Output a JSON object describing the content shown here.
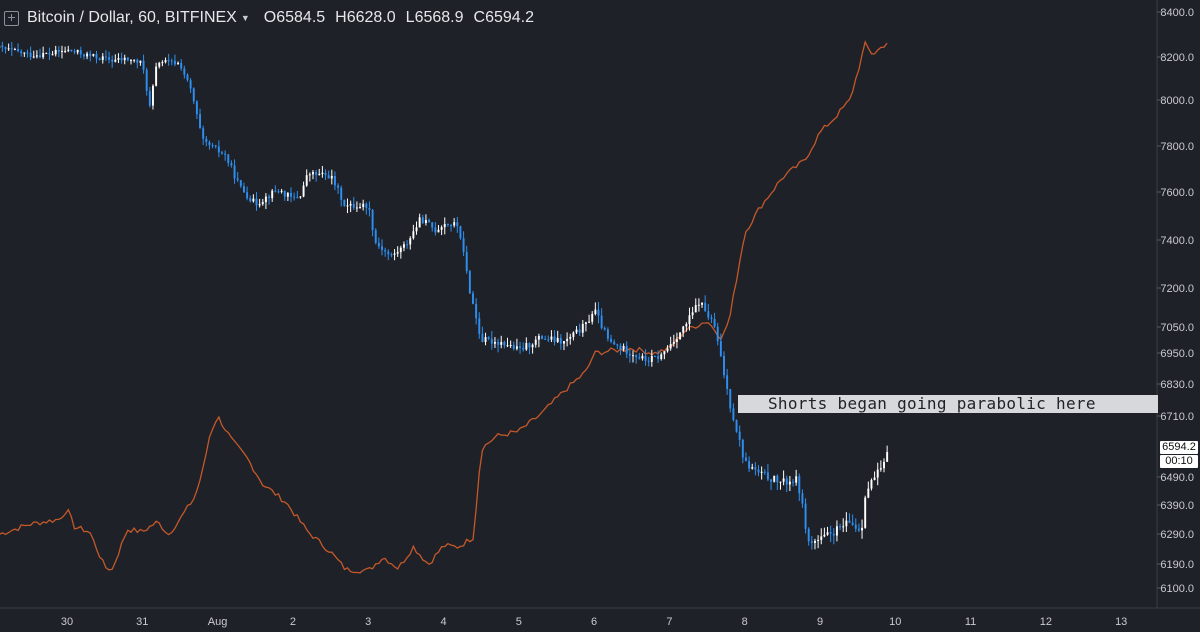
{
  "header": {
    "symbol": "Bitcoin / Dollar, 60, BITFINEX",
    "open": "O6584.5",
    "high": "H6628.0",
    "low": "L6568.9",
    "close": "C6594.2"
  },
  "annotation": "Shorts began going parabolic here",
  "last_price_label": "6594.2",
  "countdown_label": "00:10",
  "colors": {
    "background": "#1e2127",
    "up_candle": "#ffffff",
    "down_candle": "#2e8ff0",
    "overlay_line": "#c4582a",
    "axis_text": "#c9cbd0"
  },
  "chart_data": {
    "type": "candlestick",
    "ylim": [
      6050,
      8450
    ],
    "y_ticks": [
      6100.0,
      6190.0,
      6290.0,
      6390.0,
      6490.0,
      6594.2,
      6710.0,
      6830.0,
      6950.0,
      7050.0,
      7200.0,
      7400.0,
      7600.0,
      7800.0,
      8000.0,
      8200.0,
      8400.0
    ],
    "y_tick_labels": [
      "6100.0",
      "6190.0",
      "6290.0",
      "6390.0",
      "6490.0",
      "",
      "6710.0",
      "6830.0",
      "6950.0",
      "7050.0",
      "7200.0",
      "7400.0",
      "7600.0",
      "7800.0",
      "8000.0",
      "8200.0",
      "8400.0"
    ],
    "x_ticks": [
      {
        "label": "30",
        "day": 0
      },
      {
        "label": "31",
        "day": 1
      },
      {
        "label": "Aug",
        "day": 2
      },
      {
        "label": "2",
        "day": 3
      },
      {
        "label": "3",
        "day": 4
      },
      {
        "label": "4",
        "day": 5
      },
      {
        "label": "5",
        "day": 6
      },
      {
        "label": "6",
        "day": 7
      },
      {
        "label": "7",
        "day": 8
      },
      {
        "label": "8",
        "day": 9
      },
      {
        "label": "9",
        "day": 10
      },
      {
        "label": "10",
        "day": 11
      },
      {
        "label": "11",
        "day": 12
      },
      {
        "label": "12",
        "day": 13
      },
      {
        "label": "13",
        "day": 14
      }
    ],
    "price_path": [
      [
        -0.9,
        8240
      ],
      [
        -0.5,
        8210
      ],
      [
        -0.2,
        8215
      ],
      [
        0.0,
        8230
      ],
      [
        0.3,
        8205
      ],
      [
        0.6,
        8185
      ],
      [
        0.8,
        8190
      ],
      [
        1.0,
        8170
      ],
      [
        1.1,
        7970
      ],
      [
        1.2,
        8180
      ],
      [
        1.5,
        8170
      ],
      [
        1.65,
        8040
      ],
      [
        1.8,
        7820
      ],
      [
        2.1,
        7760
      ],
      [
        2.3,
        7620
      ],
      [
        2.5,
        7550
      ],
      [
        2.8,
        7610
      ],
      [
        3.0,
        7570
      ],
      [
        3.1,
        7590
      ],
      [
        3.2,
        7680
      ],
      [
        3.5,
        7670
      ],
      [
        3.7,
        7540
      ],
      [
        4.0,
        7545
      ],
      [
        4.1,
        7390
      ],
      [
        4.3,
        7330
      ],
      [
        4.5,
        7380
      ],
      [
        4.7,
        7490
      ],
      [
        4.9,
        7440
      ],
      [
        5.0,
        7470
      ],
      [
        5.2,
        7460
      ],
      [
        5.35,
        7190
      ],
      [
        5.5,
        7000
      ],
      [
        5.8,
        6990
      ],
      [
        6.0,
        6960
      ],
      [
        6.3,
        7010
      ],
      [
        6.6,
        6990
      ],
      [
        6.9,
        7060
      ],
      [
        7.0,
        7120
      ],
      [
        7.2,
        6990
      ],
      [
        7.5,
        6950
      ],
      [
        7.7,
        6920
      ],
      [
        7.9,
        6940
      ],
      [
        8.0,
        6980
      ],
      [
        8.2,
        7050
      ],
      [
        8.4,
        7150
      ],
      [
        8.6,
        7050
      ],
      [
        8.8,
        6760
      ],
      [
        9.0,
        6540
      ],
      [
        9.2,
        6500
      ],
      [
        9.5,
        6470
      ],
      [
        9.7,
        6480
      ],
      [
        9.85,
        6260
      ],
      [
        10.0,
        6270
      ],
      [
        10.2,
        6300
      ],
      [
        10.4,
        6330
      ],
      [
        10.55,
        6300
      ],
      [
        10.6,
        6430
      ],
      [
        10.7,
        6480
      ],
      [
        10.85,
        6530
      ],
      [
        10.9,
        6594
      ]
    ],
    "overlay_series": {
      "y_min": 6150,
      "y_max": 8260,
      "points": [
        [
          -0.9,
          6300
        ],
        [
          -0.5,
          6340
        ],
        [
          -0.1,
          6360
        ],
        [
          0.0,
          6400
        ],
        [
          0.1,
          6330
        ],
        [
          0.3,
          6310
        ],
        [
          0.5,
          6170
        ],
        [
          0.6,
          6160
        ],
        [
          0.8,
          6320
        ],
        [
          1.0,
          6310
        ],
        [
          1.2,
          6350
        ],
        [
          1.35,
          6300
        ],
        [
          1.5,
          6360
        ],
        [
          1.7,
          6450
        ],
        [
          1.8,
          6550
        ],
        [
          1.9,
          6700
        ],
        [
          2.0,
          6770
        ],
        [
          2.2,
          6670
        ],
        [
          2.4,
          6600
        ],
        [
          2.6,
          6500
        ],
        [
          2.9,
          6430
        ],
        [
          3.2,
          6310
        ],
        [
          3.5,
          6230
        ],
        [
          3.7,
          6160
        ],
        [
          4.0,
          6155
        ],
        [
          4.2,
          6210
        ],
        [
          4.4,
          6165
        ],
        [
          4.6,
          6250
        ],
        [
          4.8,
          6180
        ],
        [
          5.0,
          6255
        ],
        [
          5.2,
          6250
        ],
        [
          5.4,
          6290
        ],
        [
          5.5,
          6640
        ],
        [
          5.7,
          6690
        ],
        [
          6.0,
          6710
        ],
        [
          6.3,
          6780
        ],
        [
          6.6,
          6870
        ],
        [
          6.9,
          6950
        ],
        [
          7.0,
          7020
        ],
        [
          7.2,
          7030
        ],
        [
          7.5,
          7040
        ],
        [
          7.8,
          7020
        ],
        [
          8.0,
          7040
        ],
        [
          8.2,
          7110
        ],
        [
          8.5,
          7150
        ],
        [
          8.7,
          7080
        ],
        [
          8.8,
          7160
        ],
        [
          9.0,
          7500
        ],
        [
          9.2,
          7600
        ],
        [
          9.5,
          7720
        ],
        [
          9.8,
          7790
        ],
        [
          10.0,
          7900
        ],
        [
          10.2,
          7960
        ],
        [
          10.4,
          8030
        ],
        [
          10.5,
          8140
        ],
        [
          10.6,
          8250
        ],
        [
          10.7,
          8210
        ],
        [
          10.9,
          8260
        ]
      ]
    },
    "annotation_level": 6740
  }
}
